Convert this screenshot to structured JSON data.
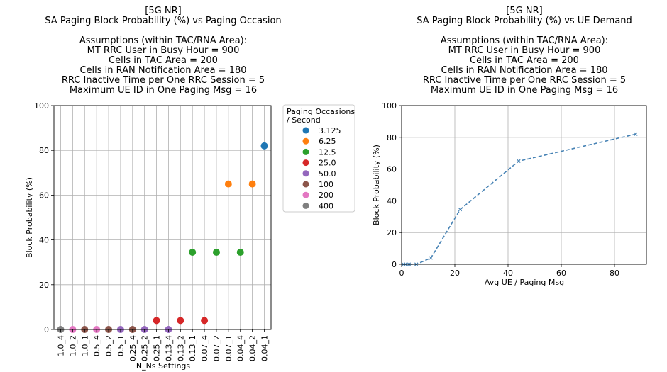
{
  "chart_data": [
    {
      "type": "scatter",
      "title_lines": [
        "[5G NR]",
        "SA Paging Block Probability (%) vs Paging Occasion",
        "",
        "Assumptions (within TAC/RNA Area):",
        "MT RRC User in Busy Hour = 900",
        "Cells in TAC Area = 200",
        "Cells in RAN Notification Area = 180",
        "RRC Inactive Time per One RRC Session = 5",
        "Maximum UE ID in One Paging Msg = 16"
      ],
      "xlabel": "N_Ns Settings",
      "ylabel": "Block Probability (%)",
      "ylim": [
        0,
        100
      ],
      "yticks": [
        0,
        20,
        40,
        60,
        80,
        100
      ],
      "grid": true,
      "categories": [
        "1.0_4",
        "1.0_2",
        "1.0_1",
        "0.5_4",
        "0.5_2",
        "0.5_1",
        "0.25_4",
        "0.25_2",
        "0.25_1",
        "0.13_4",
        "0.13_2",
        "0.13_1",
        "0.07_4",
        "0.07_2",
        "0.07_1",
        "0.04_4",
        "0.04_2",
        "0.04_1"
      ],
      "legend": {
        "title_lines": [
          "Paging Occasions",
          "/ Second"
        ],
        "placement": "outside right",
        "entries": [
          {
            "label": "3.125",
            "color": "#1f77b4"
          },
          {
            "label": "6.25",
            "color": "#ff7f0e"
          },
          {
            "label": "12.5",
            "color": "#2ca02c"
          },
          {
            "label": "25.0",
            "color": "#d62728"
          },
          {
            "label": "50.0",
            "color": "#9467bd"
          },
          {
            "label": "100",
            "color": "#8c564b"
          },
          {
            "label": "200",
            "color": "#e377c2"
          },
          {
            "label": "400",
            "color": "#7f7f7f"
          }
        ]
      },
      "points": [
        {
          "x": "1.0_4",
          "y": 0,
          "group": "400"
        },
        {
          "x": "1.0_2",
          "y": 0,
          "group": "200"
        },
        {
          "x": "1.0_1",
          "y": 0,
          "group": "100"
        },
        {
          "x": "0.5_4",
          "y": 0,
          "group": "200"
        },
        {
          "x": "0.5_2",
          "y": 0,
          "group": "100"
        },
        {
          "x": "0.5_1",
          "y": 0,
          "group": "50.0"
        },
        {
          "x": "0.25_4",
          "y": 0,
          "group": "100"
        },
        {
          "x": "0.25_2",
          "y": 0,
          "group": "50.0"
        },
        {
          "x": "0.25_1",
          "y": 4,
          "group": "25.0"
        },
        {
          "x": "0.13_4",
          "y": 0,
          "group": "50.0"
        },
        {
          "x": "0.13_2",
          "y": 4,
          "group": "25.0"
        },
        {
          "x": "0.13_1",
          "y": 34.5,
          "group": "12.5"
        },
        {
          "x": "0.07_4",
          "y": 4,
          "group": "25.0"
        },
        {
          "x": "0.07_2",
          "y": 34.5,
          "group": "12.5"
        },
        {
          "x": "0.07_1",
          "y": 65,
          "group": "6.25"
        },
        {
          "x": "0.04_4",
          "y": 34.5,
          "group": "12.5"
        },
        {
          "x": "0.04_2",
          "y": 65,
          "group": "6.25"
        },
        {
          "x": "0.04_1",
          "y": 82,
          "group": "3.125"
        }
      ]
    },
    {
      "type": "line",
      "title_lines": [
        "[5G NR]",
        "SA Paging Block Probability (%) vs UE Demand",
        "",
        "Assumptions (within TAC/RNA Area):",
        "MT RRC User in Busy Hour = 900",
        "Cells in TAC Area = 200",
        "Cells in RAN Notification Area = 180",
        "RRC Inactive Time per One RRC Session = 5",
        "Maximum UE ID in One Paging Msg = 16"
      ],
      "xlabel": "Avg UE / Paging Msg",
      "ylabel": "Block Probability (%)",
      "xlim": [
        0,
        92
      ],
      "ylim": [
        0,
        100
      ],
      "xticks": [
        0,
        20,
        40,
        60,
        80
      ],
      "yticks": [
        0,
        20,
        40,
        60,
        80,
        100
      ],
      "grid": true,
      "line_style": "dashed",
      "marker": "x",
      "color": "#4682b4",
      "x": [
        0.7,
        1.4,
        2.8,
        5.5,
        11,
        22,
        44,
        88
      ],
      "y": [
        0,
        0,
        0,
        0,
        4,
        34.5,
        65,
        82
      ]
    }
  ]
}
